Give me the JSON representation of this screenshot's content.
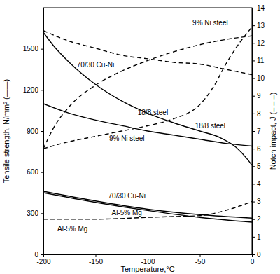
{
  "chart_data": {
    "type": "line",
    "x_label": "Temperature,°C",
    "y_label": "Tensile strength, N/mm² (——)",
    "y2_label": "Notch impact, J (– – –)",
    "xlim": [
      -200,
      0
    ],
    "xticks": [
      -200,
      -150,
      -100,
      -50,
      0
    ],
    "ylim": [
      0,
      1800
    ],
    "yticks": [
      0,
      300,
      600,
      900,
      1200,
      1500
    ],
    "y2lim": [
      0,
      14
    ],
    "y2ticks": [
      0,
      1,
      2,
      3,
      4,
      5,
      6,
      7,
      8,
      9,
      10,
      11,
      12,
      13,
      14
    ],
    "series": [
      {
        "name": "18/8 steel",
        "color": "#000000",
        "line_style": "solid",
        "x": [
          -200,
          -190,
          -175,
          -150,
          -125,
          -100,
          -75,
          -50,
          -30,
          -15,
          -5,
          0
        ],
        "values": [
          1620,
          1520,
          1400,
          1240,
          1120,
          1030,
          960,
          900,
          850,
          780,
          700,
          650
        ]
      },
      {
        "name": "9% Ni steel",
        "color": "#000000",
        "line_style": "solid",
        "x": [
          -200,
          -175,
          -150,
          -125,
          -100,
          -75,
          -50,
          -25,
          0
        ],
        "values": [
          1100,
          1030,
          980,
          940,
          900,
          870,
          840,
          810,
          790
        ]
      },
      {
        "name": "70/30 Cu-Ni",
        "color": "#000000",
        "line_style": "solid",
        "x": [
          -200,
          -150,
          -100,
          -50,
          0
        ],
        "values": [
          460,
          390,
          330,
          290,
          265
        ]
      },
      {
        "name": "Al-5% Mg",
        "color": "#000000",
        "line_style": "solid",
        "x": [
          -200,
          -150,
          -100,
          -50,
          0
        ],
        "values": [
          450,
          380,
          320,
          270,
          235
        ]
      },
      {
        "name": "70/30 Cu-Ni",
        "color": "#000000",
        "line_style": "dashed",
        "axis": "y2",
        "x": [
          -200,
          -175,
          -150,
          -125,
          -100,
          -75,
          -50,
          -25,
          0
        ],
        "values": [
          12.7,
          12.1,
          11.7,
          11.3,
          11.1,
          10.9,
          10.8,
          10.5,
          10.2
        ]
      },
      {
        "name": "9% Ni steel",
        "color": "#000000",
        "line_style": "dashed",
        "axis": "y2",
        "x": [
          -200,
          -190,
          -175,
          -150,
          -125,
          -100,
          -75,
          -50,
          -25,
          0
        ],
        "values": [
          6.0,
          7.2,
          8.4,
          9.6,
          10.4,
          11.0,
          11.5,
          11.9,
          12.2,
          12.4
        ]
      },
      {
        "name": "18/8 steel",
        "color": "#000000",
        "line_style": "dashed",
        "axis": "y2",
        "x": [
          -200,
          -175,
          -150,
          -125,
          -100,
          -75,
          -50,
          -37,
          -25,
          -12,
          0
        ],
        "values": [
          6.0,
          6.4,
          6.7,
          7.0,
          7.3,
          7.7,
          8.5,
          9.5,
          10.8,
          12.0,
          12.9
        ]
      },
      {
        "name": "Al-5% Mg",
        "color": "#000000",
        "line_style": "dashed",
        "axis": "y2",
        "x": [
          -200,
          -150,
          -100,
          -75,
          -50,
          -25,
          0
        ],
        "values": [
          2.0,
          2.0,
          2.1,
          2.15,
          2.2,
          2.5,
          3.0
        ]
      }
    ]
  }
}
